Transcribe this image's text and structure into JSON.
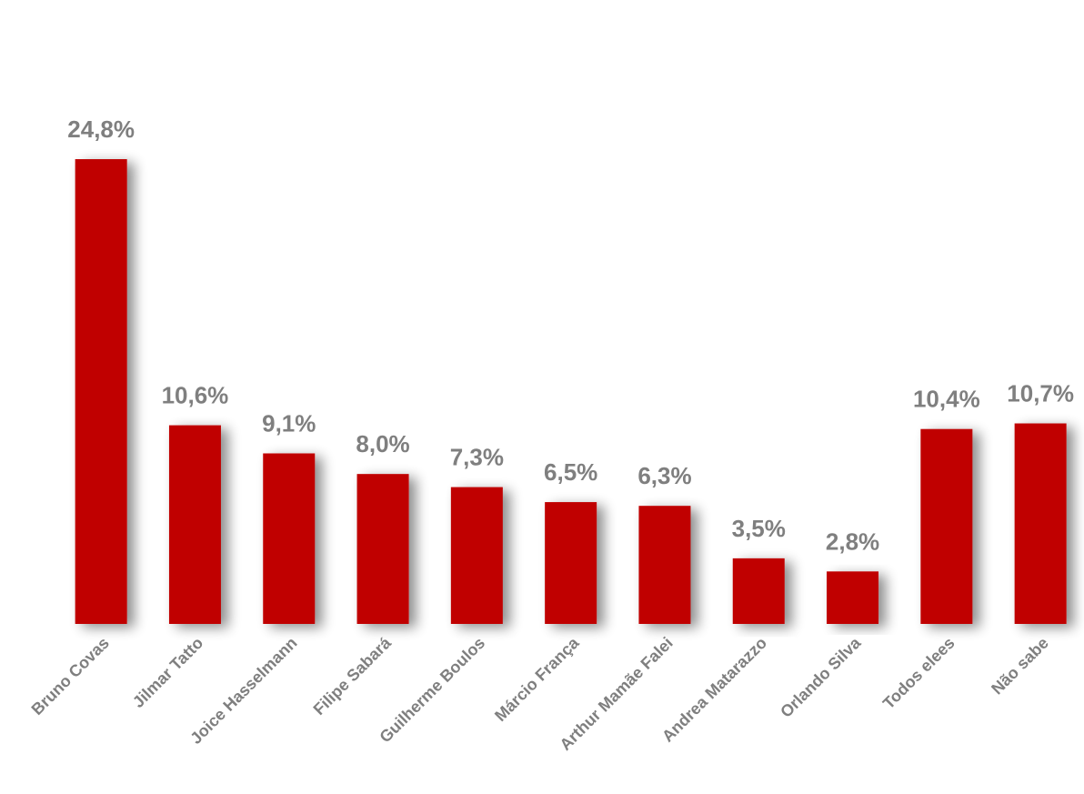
{
  "chart_data": {
    "type": "bar",
    "categories": [
      "Bruno Covas",
      "Jilmar Tatto",
      "Joice Hasselmann",
      "Filipe Sabará",
      "Guilherme Boulos",
      "Márcio França",
      "Arthur Mamãe Falei",
      "Andrea Matarazzo",
      "Orlando Silva",
      "Todos elees",
      "Não sabe"
    ],
    "values": [
      24.8,
      10.6,
      9.1,
      8.0,
      7.3,
      6.5,
      6.3,
      3.5,
      2.8,
      10.4,
      10.7
    ],
    "value_labels": [
      "24,8%",
      "10,6%",
      "9,1%",
      "8,0%",
      "7,3%",
      "6,5%",
      "6,3%",
      "3,5%",
      "2,8%",
      "10,4%",
      "10,7%"
    ],
    "color": "#c00000"
  }
}
